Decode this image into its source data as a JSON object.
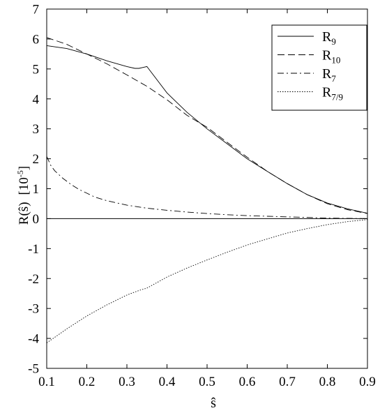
{
  "chart_data": {
    "type": "line",
    "xlabel": "ŝ",
    "ylabel": {
      "main": "R(ŝ)",
      "unit_base": "[10",
      "unit_exp": "-5",
      "unit_close": "]"
    },
    "xlim": [
      0.1,
      0.9
    ],
    "ylim": [
      -5,
      7
    ],
    "xticks": [
      "0.1",
      "0.2",
      "0.3",
      "0.4",
      "0.5",
      "0.6",
      "0.7",
      "0.8",
      "0.9"
    ],
    "yticks": [
      "-5",
      "-4",
      "-3",
      "-2",
      "-1",
      "0",
      "1",
      "2",
      "3",
      "4",
      "5",
      "6",
      "7"
    ],
    "legend_position": "top-right",
    "grid": false,
    "zero_line": true,
    "series": [
      {
        "name": "R9",
        "base": "R",
        "sub": "9",
        "dash": "solid",
        "x": [
          0.1,
          0.15,
          0.2,
          0.25,
          0.3,
          0.32,
          0.33,
          0.34,
          0.35,
          0.4,
          0.45,
          0.5,
          0.55,
          0.6,
          0.65,
          0.7,
          0.75,
          0.8,
          0.85,
          0.9
        ],
        "y": [
          5.78,
          5.68,
          5.5,
          5.27,
          5.08,
          5.02,
          5.02,
          5.05,
          5.08,
          4.2,
          3.55,
          3.0,
          2.5,
          2.0,
          1.58,
          1.17,
          0.8,
          0.52,
          0.33,
          0.18
        ]
      },
      {
        "name": "R10",
        "base": "R",
        "sub": "10",
        "dash": "dashed",
        "x": [
          0.1,
          0.15,
          0.2,
          0.25,
          0.3,
          0.35,
          0.4,
          0.45,
          0.5,
          0.55,
          0.6,
          0.65,
          0.7,
          0.75,
          0.8,
          0.85,
          0.9
        ],
        "y": [
          6.05,
          5.82,
          5.5,
          5.17,
          4.8,
          4.42,
          3.97,
          3.45,
          3.05,
          2.55,
          2.05,
          1.58,
          1.17,
          0.8,
          0.5,
          0.3,
          0.17
        ]
      },
      {
        "name": "R7",
        "base": "R",
        "sub": "7",
        "dash": "dashdot",
        "x": [
          0.1,
          0.11,
          0.12,
          0.14,
          0.16,
          0.18,
          0.2,
          0.22,
          0.25,
          0.3,
          0.35,
          0.4,
          0.45,
          0.5,
          0.55,
          0.6,
          0.65,
          0.7,
          0.75,
          0.8,
          0.85,
          0.9
        ],
        "y": [
          2.08,
          1.78,
          1.6,
          1.35,
          1.15,
          0.98,
          0.85,
          0.72,
          0.6,
          0.45,
          0.35,
          0.28,
          0.22,
          0.17,
          0.13,
          0.1,
          0.08,
          0.06,
          0.04,
          0.02,
          0.01,
          0.0
        ]
      },
      {
        "name": "R7/9",
        "base": "R",
        "sub": "7/9",
        "dash": "dotted",
        "x": [
          0.1,
          0.15,
          0.2,
          0.25,
          0.3,
          0.33,
          0.35,
          0.4,
          0.45,
          0.5,
          0.55,
          0.6,
          0.65,
          0.7,
          0.75,
          0.8,
          0.85,
          0.9
        ],
        "y": [
          -4.15,
          -3.68,
          -3.25,
          -2.88,
          -2.55,
          -2.4,
          -2.32,
          -1.95,
          -1.65,
          -1.38,
          -1.12,
          -0.88,
          -0.68,
          -0.48,
          -0.33,
          -0.2,
          -0.1,
          -0.03
        ]
      }
    ]
  }
}
